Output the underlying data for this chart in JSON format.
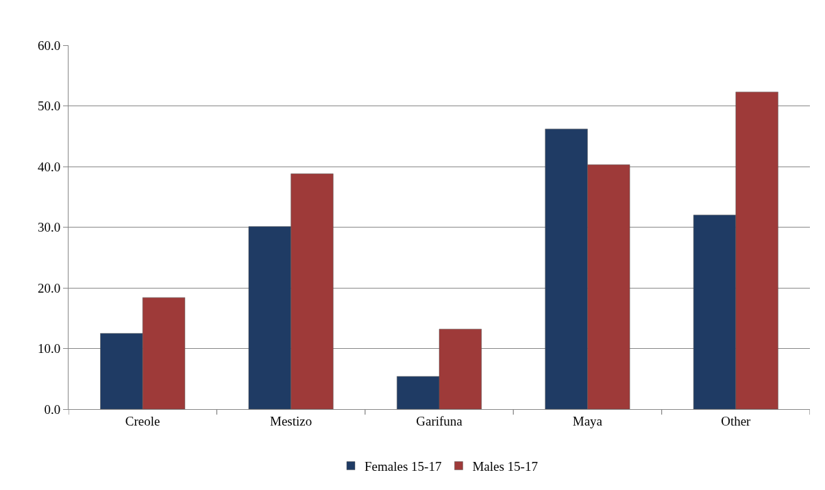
{
  "chart_data": {
    "type": "bar",
    "categories": [
      "Creole",
      "Mestizo",
      "Garifuna",
      "Maya",
      "Other"
    ],
    "series": [
      {
        "name": "Females 15-17",
        "color": "#1f3b64",
        "values": [
          12.5,
          30.1,
          5.4,
          46.2,
          32.0
        ]
      },
      {
        "name": "Males 15-17",
        "color": "#9e3a39",
        "values": [
          18.4,
          38.8,
          13.2,
          40.3,
          52.3
        ]
      }
    ],
    "ylim": [
      0,
      60
    ],
    "yticks": [
      {
        "value": 0,
        "label": "0.0"
      },
      {
        "value": 10,
        "label": "10.0"
      },
      {
        "value": 20,
        "label": "20.0"
      },
      {
        "value": 30,
        "label": "30.0"
      },
      {
        "value": 40,
        "label": "40.0"
      },
      {
        "value": 50,
        "label": "50.0"
      },
      {
        "value": 60,
        "label": "60.0"
      }
    ],
    "grid": "y",
    "legend": "bottom"
  }
}
